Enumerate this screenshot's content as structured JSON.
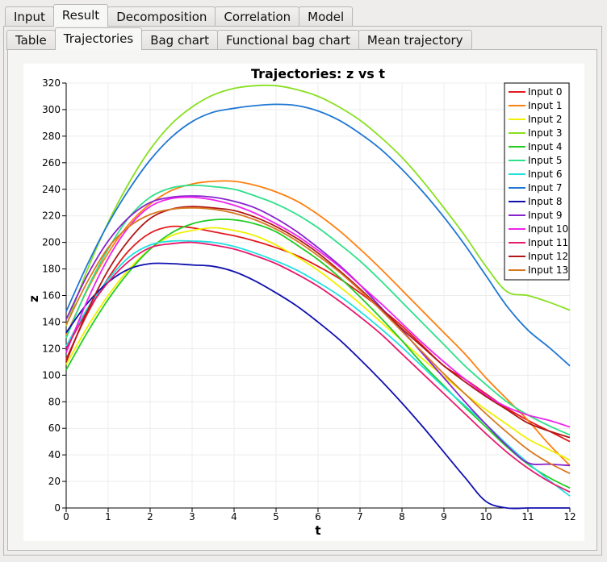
{
  "tabs": [
    "Input",
    "Result",
    "Decomposition",
    "Correlation",
    "Model"
  ],
  "active_tab": 1,
  "subtabs": [
    "Table",
    "Trajectories",
    "Bag chart",
    "Functional bag chart",
    "Mean trajectory"
  ],
  "active_subtab": 1,
  "chart_data": {
    "type": "line",
    "title": "Trajectories: z vs t",
    "xlabel": "t",
    "ylabel": "z",
    "xlim": [
      0,
      12
    ],
    "ylim": [
      0,
      320
    ],
    "xticks": [
      0,
      1,
      2,
      3,
      4,
      5,
      6,
      7,
      8,
      9,
      10,
      11,
      12
    ],
    "yticks": [
      0,
      20,
      40,
      60,
      80,
      100,
      120,
      140,
      160,
      180,
      200,
      220,
      240,
      260,
      280,
      300,
      320
    ],
    "grid": true,
    "legend_position": "top-right",
    "x": [
      0,
      0.5,
      1,
      1.5,
      2,
      2.5,
      3,
      3.5,
      4,
      4.5,
      5,
      5.5,
      6,
      6.5,
      7,
      7.5,
      8,
      8.5,
      9,
      9.5,
      10,
      10.5,
      11,
      11.5,
      12
    ],
    "series": [
      {
        "name": "Input 0",
        "color": "#e31a1c",
        "values": [
          112,
          146,
          173,
          194,
          207,
          212,
          211,
          208,
          205,
          201,
          196,
          190,
          182,
          173,
          162,
          150,
          137,
          122,
          107,
          97,
          86,
          75,
          66,
          58,
          50
        ]
      },
      {
        "name": "Input 1",
        "color": "#ff7f0e",
        "values": [
          130,
          164,
          192,
          214,
          229,
          239,
          244,
          246,
          246,
          243,
          238,
          231,
          221,
          209,
          195,
          180,
          164,
          148,
          132,
          116,
          98,
          82,
          66,
          48,
          32
        ]
      },
      {
        "name": "Input 2",
        "color": "#f0f000",
        "values": [
          108,
          136,
          160,
          180,
          195,
          205,
          209,
          211,
          209,
          205,
          198,
          189,
          179,
          167,
          154,
          140,
          126,
          112,
          99,
          86,
          74,
          63,
          52,
          44,
          36
        ]
      },
      {
        "name": "Input 3",
        "color": "#88e020",
        "values": [
          137,
          179,
          215,
          245,
          270,
          289,
          302,
          311,
          316,
          318,
          318,
          315,
          310,
          302,
          292,
          279,
          264,
          246,
          226,
          205,
          182,
          163,
          160,
          155,
          149
        ]
      },
      {
        "name": "Input 4",
        "color": "#22cc22",
        "values": [
          104,
          132,
          157,
          178,
          195,
          207,
          214,
          217,
          217,
          214,
          208,
          198,
          187,
          174,
          159,
          143,
          126,
          108,
          92,
          76,
          61,
          46,
          33,
          23,
          15
        ]
      },
      {
        "name": "Input 5",
        "color": "#2ee08a",
        "values": [
          128,
          165,
          195,
          219,
          234,
          241,
          243,
          242,
          240,
          235,
          229,
          221,
          211,
          199,
          186,
          171,
          155,
          139,
          123,
          107,
          93,
          80,
          70,
          62,
          55
        ]
      },
      {
        "name": "Input 6",
        "color": "#20e0e0",
        "values": [
          122,
          150,
          172,
          189,
          198,
          201,
          201,
          200,
          197,
          192,
          186,
          179,
          170,
          160,
          148,
          135,
          121,
          106,
          91,
          77,
          63,
          48,
          34,
          21,
          9
        ]
      },
      {
        "name": "Input 7",
        "color": "#1f77d4",
        "values": [
          148,
          183,
          214,
          240,
          262,
          279,
          291,
          298,
          301,
          303,
          304,
          303,
          299,
          292,
          282,
          270,
          255,
          238,
          219,
          198,
          175,
          152,
          134,
          121,
          107
        ]
      },
      {
        "name": "Input 8",
        "color": "#1010b0",
        "values": [
          132,
          154,
          170,
          180,
          184,
          184,
          183,
          182,
          178,
          171,
          162,
          152,
          140,
          127,
          112,
          96,
          79,
          61,
          42,
          23,
          5,
          0,
          0,
          0,
          0
        ]
      },
      {
        "name": "Input 9",
        "color": "#8822cc",
        "values": [
          142,
          175,
          201,
          219,
          230,
          234,
          235,
          234,
          231,
          226,
          218,
          208,
          196,
          183,
          168,
          151,
          134,
          116,
          98,
          80,
          63,
          47,
          34,
          33,
          32
        ]
      },
      {
        "name": "Input 10",
        "color": "#ee22ee",
        "values": [
          117,
          156,
          188,
          212,
          227,
          233,
          234,
          232,
          228,
          222,
          214,
          205,
          194,
          182,
          168,
          154,
          139,
          124,
          110,
          97,
          85,
          76,
          70,
          66,
          61
        ]
      },
      {
        "name": "Input 11",
        "color": "#e8186c",
        "values": [
          120,
          148,
          170,
          186,
          196,
          199,
          200,
          198,
          195,
          190,
          184,
          176,
          167,
          156,
          144,
          131,
          116,
          101,
          86,
          71,
          56,
          42,
          30,
          20,
          12
        ]
      },
      {
        "name": "Input 12",
        "color": "#b01818",
        "values": [
          110,
          148,
          179,
          202,
          218,
          225,
          227,
          226,
          224,
          219,
          212,
          203,
          192,
          179,
          165,
          150,
          135,
          121,
          107,
          95,
          84,
          74,
          64,
          58,
          53
        ]
      },
      {
        "name": "Input 13",
        "color": "#d87820",
        "values": [
          138,
          170,
          196,
          212,
          221,
          225,
          226,
          225,
          222,
          217,
          210,
          201,
          190,
          178,
          164,
          149,
          133,
          117,
          101,
          86,
          71,
          57,
          44,
          34,
          26
        ]
      }
    ]
  }
}
